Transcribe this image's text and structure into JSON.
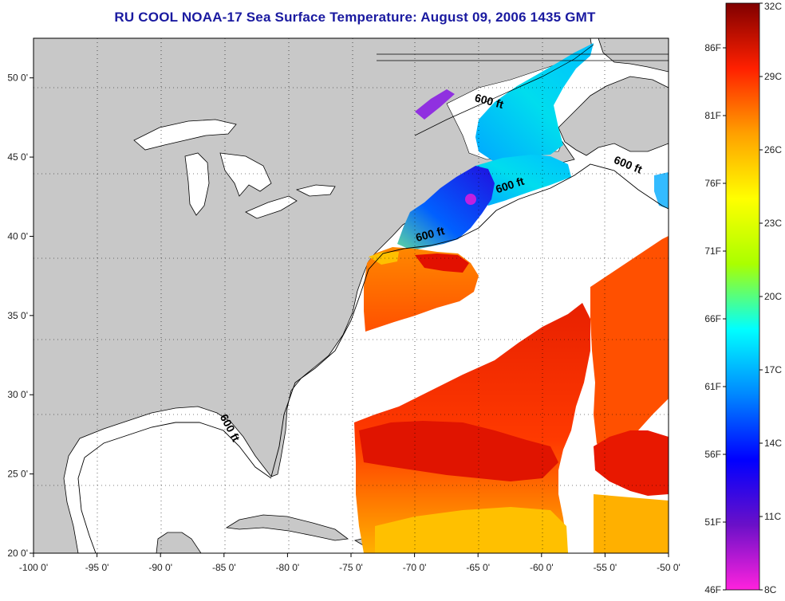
{
  "title": "RU COOL  NOAA-17  Sea Surface Temperature:  August 09, 2006 1435 GMT",
  "map": {
    "lon_range": [
      -100,
      -50
    ],
    "lat_range": [
      20,
      52.5
    ],
    "x_ticks": [
      "-100 0'",
      "-95 0'",
      "-90 0'",
      "-85 0'",
      "-80 0'",
      "-75 0'",
      "-70 0'",
      "-65 0'",
      "-60 0'",
      "-55 0'",
      "-50 0'"
    ],
    "y_ticks": [
      "50 0'",
      "45 0'",
      "40 0'",
      "35 0'",
      "30 0'",
      "25 0'",
      "20 0'"
    ],
    "contour_labels": [
      {
        "text": "600 ft",
        "lon": -64.2,
        "lat": 48.3,
        "angle": 15
      },
      {
        "text": "600 ft",
        "lon": -53.3,
        "lat": 44.3,
        "angle": 22
      },
      {
        "text": "600 ft",
        "lon": -62.4,
        "lat": 43.0,
        "angle": -18
      },
      {
        "text": "600 ft",
        "lon": -68.7,
        "lat": 39.9,
        "angle": -15
      },
      {
        "text": "600 ft",
        "lon": -84.8,
        "lat": 27.8,
        "angle": 62
      }
    ],
    "land_color": "#c8c8c8",
    "water_color": "#ffffff"
  },
  "colorbar": {
    "f_labels": [
      "86F",
      "81F",
      "76F",
      "71F",
      "66F",
      "61F",
      "56F",
      "51F",
      "46F"
    ],
    "c_labels": [
      "32C",
      "29C",
      "26C",
      "23C",
      "20C",
      "17C",
      "14C",
      "11C",
      "8C"
    ],
    "stops": [
      "#ff22dd",
      "#6a10c8",
      "#0000ff",
      "#0088ff",
      "#00ffff",
      "#aaff00",
      "#ffff00",
      "#ffa000",
      "#ff2000",
      "#800000"
    ]
  }
}
